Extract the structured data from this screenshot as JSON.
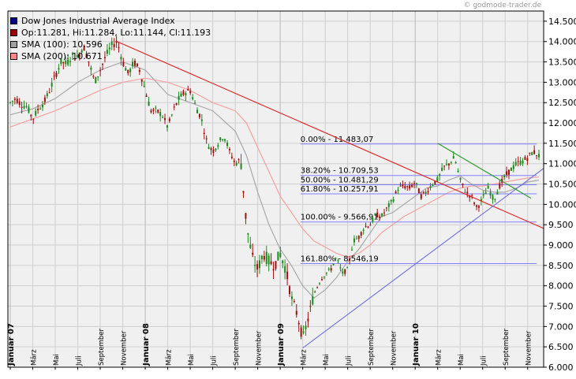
{
  "watermark": "© godmode-trader.de",
  "legend": [
    {
      "label": "Dow Jones Industrial Average Index",
      "color": "#000080"
    },
    {
      "label": "Op:11.281, Hi:11.284, Lo:11.144, Cl:11.193",
      "color": "#990000"
    },
    {
      "label": "SMA (100): 10.596",
      "color": "#a0a0a0"
    },
    {
      "label": "SMA (200): 10.671",
      "color": "#ff8c8c"
    }
  ],
  "colors": {
    "up": "#1a8a1a",
    "down": "#a01010",
    "downtrend_line": "#e02020",
    "uptrend_line": "#6f6fe0",
    "channel_line": "#2a9a2a",
    "fib_line": "#8080ff",
    "sma100": "#a8a8a8",
    "sma200": "#f5a0a0",
    "grid": "#cfcfcf",
    "plot_bg": "#f0f0f0"
  },
  "chart_data": {
    "type": "candlestick",
    "title": "Dow Jones Industrial Average Index",
    "ylim": [
      6000,
      14750
    ],
    "grid": true,
    "legend_placement": "top-left",
    "y_ticks": [
      "14.500",
      "14.000",
      "13.500",
      "13.000",
      "12.500",
      "12.000",
      "11.500",
      "11.000",
      "10.500",
      "10.000",
      "9.500",
      "9.000",
      "8.500",
      "8.000",
      "7.500",
      "7.000",
      "6.500",
      "6.000"
    ],
    "y_tick_values": [
      14500,
      14000,
      13500,
      13000,
      12500,
      12000,
      11500,
      11000,
      10500,
      10000,
      9500,
      9000,
      8500,
      8000,
      7500,
      7000,
      6500,
      6000
    ],
    "x_ticks": [
      {
        "label": "Januar 07",
        "m": 0,
        "major": true
      },
      {
        "label": "März",
        "m": 2
      },
      {
        "label": "Mai",
        "m": 4
      },
      {
        "label": "Juli",
        "m": 6
      },
      {
        "label": "September",
        "m": 8
      },
      {
        "label": "November",
        "m": 10
      },
      {
        "label": "Januar 08",
        "m": 12,
        "major": true
      },
      {
        "label": "März",
        "m": 14
      },
      {
        "label": "Mai",
        "m": 16
      },
      {
        "label": "Juli",
        "m": 18
      },
      {
        "label": "September",
        "m": 20
      },
      {
        "label": "November",
        "m": 22
      },
      {
        "label": "Januar 09",
        "m": 24,
        "major": true
      },
      {
        "label": "März",
        "m": 26
      },
      {
        "label": "Mai",
        "m": 28
      },
      {
        "label": "Juli",
        "m": 30
      },
      {
        "label": "September",
        "m": 32
      },
      {
        "label": "November",
        "m": 34
      },
      {
        "label": "Januar 10",
        "m": 36,
        "major": true
      },
      {
        "label": "März",
        "m": 38
      },
      {
        "label": "Mai",
        "m": 40
      },
      {
        "label": "Juli",
        "m": 42
      },
      {
        "label": "September",
        "m": 44
      },
      {
        "label": "November",
        "m": 46
      }
    ],
    "fib_levels": [
      {
        "label": "0.00% - 11.483,07",
        "value": 11483.07
      },
      {
        "label": "38.20% - 10.709,53",
        "value": 10709.53
      },
      {
        "label": "50.00% - 10.481,29",
        "value": 10481.29
      },
      {
        "label": "61.80% - 10.257,91",
        "value": 10257.91
      },
      {
        "label": "100.00% - 9.566,91",
        "value": 9566.91
      },
      {
        "label": "161.80% - 8.546,19",
        "value": 8546.19
      }
    ],
    "series": [
      {
        "name": "Dow Jones Industrial Average Index",
        "points": [
          [
            0,
            12500
          ],
          [
            0.5,
            12600
          ],
          [
            1,
            12450
          ],
          [
            1.5,
            12400
          ],
          [
            2,
            12100
          ],
          [
            2.5,
            12350
          ],
          [
            3,
            12500
          ],
          [
            3.5,
            12800
          ],
          [
            4,
            13150
          ],
          [
            4.5,
            13500
          ],
          [
            5,
            13450
          ],
          [
            5.5,
            13650
          ],
          [
            6,
            13600
          ],
          [
            6.5,
            13900
          ],
          [
            7,
            13500
          ],
          [
            7.5,
            13000
          ],
          [
            8,
            13300
          ],
          [
            8.5,
            13650
          ],
          [
            9,
            13900
          ],
          [
            9.5,
            14000
          ],
          [
            10,
            13500
          ],
          [
            10.5,
            13200
          ],
          [
            11,
            13500
          ],
          [
            11.5,
            13300
          ],
          [
            12,
            12800
          ],
          [
            12.5,
            12300
          ],
          [
            13,
            12300
          ],
          [
            13.5,
            12200
          ],
          [
            14,
            11900
          ],
          [
            14.5,
            12300
          ],
          [
            15,
            12600
          ],
          [
            15.5,
            12750
          ],
          [
            16,
            12800
          ],
          [
            16.5,
            12400
          ],
          [
            17,
            12100
          ],
          [
            17.5,
            11500
          ],
          [
            18,
            11300
          ],
          [
            18.5,
            11500
          ],
          [
            19,
            11700
          ],
          [
            19.5,
            11300
          ],
          [
            20,
            11000
          ],
          [
            20.5,
            11100
          ],
          [
            21,
            9500
          ],
          [
            21.5,
            8700
          ],
          [
            22,
            8400
          ],
          [
            22.5,
            8800
          ],
          [
            23,
            8600
          ],
          [
            23.5,
            8500
          ],
          [
            24,
            8800
          ],
          [
            24.5,
            8400
          ],
          [
            25,
            7700
          ],
          [
            25.5,
            7300
          ],
          [
            26,
            6700
          ],
          [
            26.5,
            7200
          ],
          [
            27,
            7800
          ],
          [
            27.5,
            8100
          ],
          [
            28,
            8300
          ],
          [
            28.5,
            8400
          ],
          [
            29,
            8700
          ],
          [
            29.5,
            8300
          ],
          [
            30,
            8400
          ],
          [
            30.5,
            9100
          ],
          [
            31,
            9200
          ],
          [
            31.5,
            9450
          ],
          [
            32,
            9500
          ],
          [
            32.5,
            9750
          ],
          [
            33,
            9700
          ],
          [
            33.5,
            9900
          ],
          [
            34,
            10100
          ],
          [
            34.5,
            10400
          ],
          [
            35,
            10450
          ],
          [
            35.5,
            10400
          ],
          [
            36,
            10550
          ],
          [
            36.5,
            10200
          ],
          [
            37,
            10300
          ],
          [
            37.5,
            10500
          ],
          [
            38,
            10600
          ],
          [
            38.5,
            10900
          ],
          [
            39,
            11000
          ],
          [
            39.5,
            11150
          ],
          [
            40,
            10600
          ],
          [
            40.5,
            10300
          ],
          [
            41,
            10200
          ],
          [
            41.5,
            9900
          ],
          [
            42,
            10150
          ],
          [
            42.5,
            10400
          ],
          [
            43,
            10100
          ],
          [
            43.5,
            10450
          ],
          [
            44,
            10700
          ],
          [
            44.5,
            10850
          ],
          [
            45,
            11000
          ],
          [
            45.5,
            11050
          ],
          [
            46,
            11150
          ],
          [
            46.5,
            11300
          ],
          [
            47,
            11193
          ]
        ]
      },
      {
        "name": "SMA (100)",
        "points": [
          [
            0,
            12200
          ],
          [
            2,
            12350
          ],
          [
            4,
            12600
          ],
          [
            6,
            13000
          ],
          [
            8,
            13300
          ],
          [
            10,
            13500
          ],
          [
            12,
            13300
          ],
          [
            14,
            12700
          ],
          [
            16,
            12500
          ],
          [
            18,
            12300
          ],
          [
            20,
            11800
          ],
          [
            21,
            11200
          ],
          [
            22,
            10300
          ],
          [
            23,
            9500
          ],
          [
            24,
            8900
          ],
          [
            25,
            8500
          ],
          [
            26,
            8000
          ],
          [
            27,
            7700
          ],
          [
            28,
            7900
          ],
          [
            29,
            8200
          ],
          [
            30,
            8600
          ],
          [
            31,
            8900
          ],
          [
            32,
            9300
          ],
          [
            33,
            9700
          ],
          [
            34,
            9800
          ],
          [
            35,
            10000
          ],
          [
            36,
            10200
          ],
          [
            37,
            10400
          ],
          [
            38,
            10450
          ],
          [
            39,
            10600
          ],
          [
            40,
            10700
          ],
          [
            41,
            10500
          ],
          [
            42,
            10350
          ],
          [
            43,
            10300
          ],
          [
            44,
            10300
          ],
          [
            45,
            10400
          ],
          [
            46,
            10550
          ],
          [
            47,
            10596
          ]
        ]
      },
      {
        "name": "SMA (200)",
        "points": [
          [
            0,
            11900
          ],
          [
            2,
            12100
          ],
          [
            4,
            12300
          ],
          [
            6,
            12550
          ],
          [
            8,
            12800
          ],
          [
            10,
            13000
          ],
          [
            12,
            13100
          ],
          [
            14,
            13000
          ],
          [
            16,
            12800
          ],
          [
            18,
            12500
          ],
          [
            20,
            12300
          ],
          [
            21,
            12000
          ],
          [
            22,
            11400
          ],
          [
            23,
            10800
          ],
          [
            24,
            10200
          ],
          [
            25,
            9800
          ],
          [
            26,
            9400
          ],
          [
            27,
            9100
          ],
          [
            28,
            8950
          ],
          [
            29,
            8800
          ],
          [
            30,
            8700
          ],
          [
            31,
            8800
          ],
          [
            32,
            9000
          ],
          [
            33,
            9300
          ],
          [
            34,
            9500
          ],
          [
            35,
            9700
          ],
          [
            36,
            9850
          ],
          [
            37,
            10000
          ],
          [
            38,
            10150
          ],
          [
            39,
            10300
          ],
          [
            40,
            10400
          ],
          [
            41,
            10450
          ],
          [
            42,
            10450
          ],
          [
            43,
            10500
          ],
          [
            44,
            10550
          ],
          [
            45,
            10600
          ],
          [
            46,
            10650
          ],
          [
            47,
            10671
          ]
        ]
      }
    ],
    "trend_lines": [
      {
        "name": "downtrend",
        "from": [
          9.5,
          14000
        ],
        "to": [
          47.5,
          9400
        ]
      },
      {
        "name": "uptrend",
        "from": [
          26,
          6470
        ],
        "to": [
          47.5,
          10900
        ]
      },
      {
        "name": "channel",
        "from": [
          38,
          11500
        ],
        "to": [
          46.3,
          10150
        ]
      }
    ]
  }
}
